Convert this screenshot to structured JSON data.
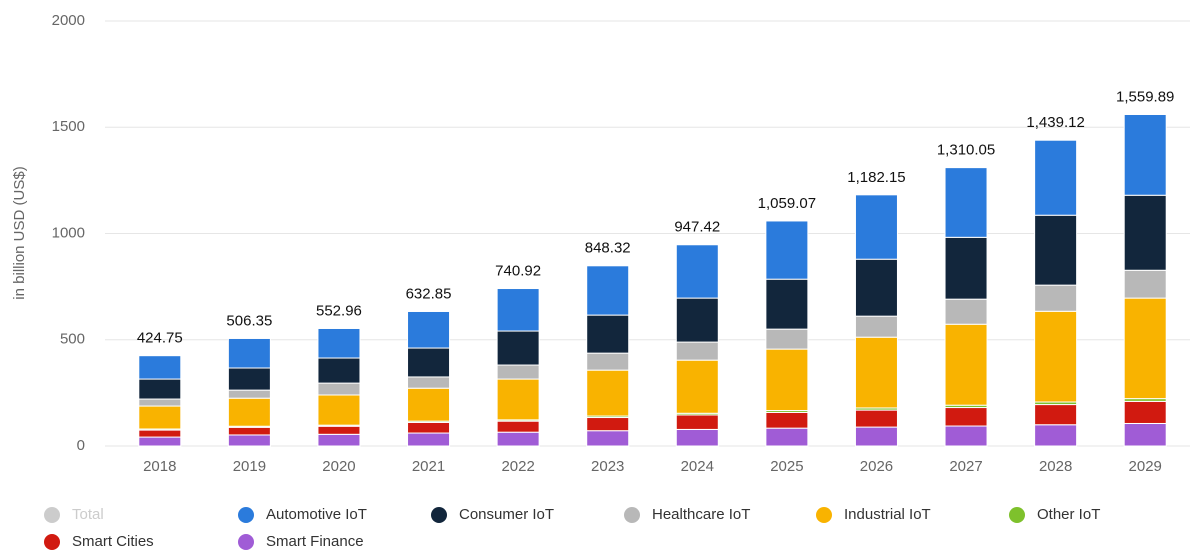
{
  "chart_data": {
    "type": "stacked_bar",
    "y_label": "in billion USD (US$)",
    "categories": [
      "2018",
      "2019",
      "2020",
      "2021",
      "2022",
      "2023",
      "2024",
      "2025",
      "2026",
      "2027",
      "2028",
      "2029"
    ],
    "series": [
      {
        "name": "Total",
        "color": "#cccccc",
        "visible": false,
        "values": [
          424.75,
          506.35,
          552.96,
          632.85,
          740.92,
          848.32,
          947.42,
          1059.07,
          1182.15,
          1310.05,
          1439.12,
          1559.89
        ],
        "value_labels": [
          "424.75",
          "506.35",
          "552.96",
          "632.85",
          "740.92",
          "848.32",
          "947.42",
          "1,059.07",
          "1,182.15",
          "1,310.05",
          "1,439.12",
          "1,559.89"
        ]
      },
      {
        "name": "Automotive IoT",
        "color": "#2b7bdc",
        "values": [
          110,
          139,
          139,
          172,
          200,
          232,
          251,
          274,
          303,
          328,
          353,
          380
        ]
      },
      {
        "name": "Consumer IoT",
        "color": "#12263c",
        "values": [
          94,
          104,
          118,
          136,
          160,
          179,
          207,
          235,
          268,
          291,
          329,
          353
        ]
      },
      {
        "name": "Healthcare IoT",
        "color": "#b8b8b8",
        "values": [
          33,
          38,
          56,
          53,
          66,
          80,
          85,
          94,
          99,
          118,
          123,
          131
        ]
      },
      {
        "name": "Industrial IoT",
        "color": "#f9b300",
        "values": [
          108,
          132,
          142,
          155,
          192,
          216,
          250,
          289,
          333,
          381,
          427,
          473
        ]
      },
      {
        "name": "Other IoT",
        "color": "#7ec12c",
        "values": [
          5,
          5,
          5,
          6,
          6,
          7,
          8,
          9,
          10,
          11,
          12,
          13
        ]
      },
      {
        "name": "Smart Cities",
        "color": "#d11a10",
        "values": [
          33,
          36,
          38,
          50,
          52,
          62,
          68,
          74,
          80,
          87,
          95,
          104
        ]
      },
      {
        "name": "Smart Finance",
        "color": "#a05cd6",
        "values": [
          42,
          52,
          55,
          61,
          65,
          72,
          78,
          84,
          89,
          94,
          100,
          106
        ]
      }
    ],
    "ylim": [
      0,
      2000
    ],
    "yticks": [
      0,
      500,
      1000,
      1500,
      2000
    ],
    "grid": true
  }
}
